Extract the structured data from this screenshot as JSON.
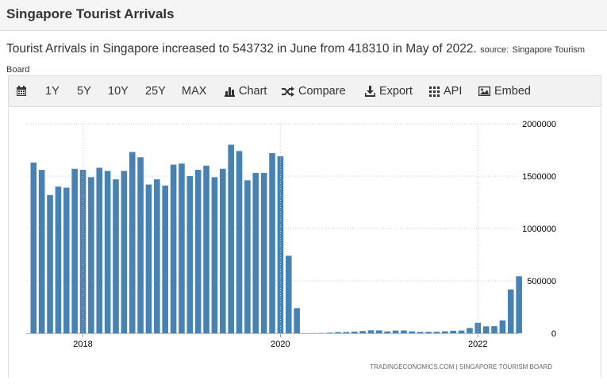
{
  "header": {
    "title": "Singapore Tourist Arrivals"
  },
  "description": {
    "text": "Tourist Arrivals in Singapore increased to 543732 in June from 418310 in May of 2022.",
    "source_label": "source:",
    "source_name": "Singapore Tourism Board"
  },
  "toolbar": {
    "ranges": [
      "1Y",
      "5Y",
      "10Y",
      "25Y",
      "MAX"
    ],
    "chart_label": "Chart",
    "compare_label": "Compare",
    "export_label": "Export",
    "api_label": "API",
    "embed_label": "Embed"
  },
  "chart_data": {
    "type": "bar",
    "color": "#4682b4",
    "x_tick_labels": [
      "2018",
      "2020",
      "2022"
    ],
    "y_tick_labels": [
      "2000000",
      "1500000",
      "1000000",
      "500000",
      "0"
    ],
    "ylim": [
      0,
      2000000
    ],
    "credits": "TRADINGECONOMICS.COM  |  SINGAPORE TOURISM BOARD",
    "categories": [
      "2017-07",
      "2017-08",
      "2017-09",
      "2017-10",
      "2017-11",
      "2017-12",
      "2018-01",
      "2018-02",
      "2018-03",
      "2018-04",
      "2018-05",
      "2018-06",
      "2018-07",
      "2018-08",
      "2018-09",
      "2018-10",
      "2018-11",
      "2018-12",
      "2019-01",
      "2019-02",
      "2019-03",
      "2019-04",
      "2019-05",
      "2019-06",
      "2019-07",
      "2019-08",
      "2019-09",
      "2019-10",
      "2019-11",
      "2019-12",
      "2020-01",
      "2020-02",
      "2020-03",
      "2020-04",
      "2020-05",
      "2020-06",
      "2020-07",
      "2020-08",
      "2020-09",
      "2020-10",
      "2020-11",
      "2020-12",
      "2021-01",
      "2021-02",
      "2021-03",
      "2021-04",
      "2021-05",
      "2021-06",
      "2021-07",
      "2021-08",
      "2021-09",
      "2021-10",
      "2021-11",
      "2021-12",
      "2022-01",
      "2022-02",
      "2022-03",
      "2022-04",
      "2022-05",
      "2022-06"
    ],
    "values": [
      1630000,
      1560000,
      1320000,
      1400000,
      1390000,
      1570000,
      1560000,
      1490000,
      1580000,
      1550000,
      1470000,
      1550000,
      1730000,
      1680000,
      1420000,
      1470000,
      1410000,
      1610000,
      1620000,
      1500000,
      1560000,
      1600000,
      1490000,
      1570000,
      1800000,
      1740000,
      1460000,
      1530000,
      1530000,
      1720000,
      1690000,
      740000,
      240000,
      750,
      880,
      1840,
      5600,
      11200,
      11900,
      16200,
      21500,
      27700,
      27100,
      17900,
      25600,
      26700,
      17800,
      12900,
      13400,
      14100,
      18300,
      23800,
      25700,
      50100,
      100000,
      66000,
      67500,
      123000,
      418310,
      543732
    ]
  }
}
